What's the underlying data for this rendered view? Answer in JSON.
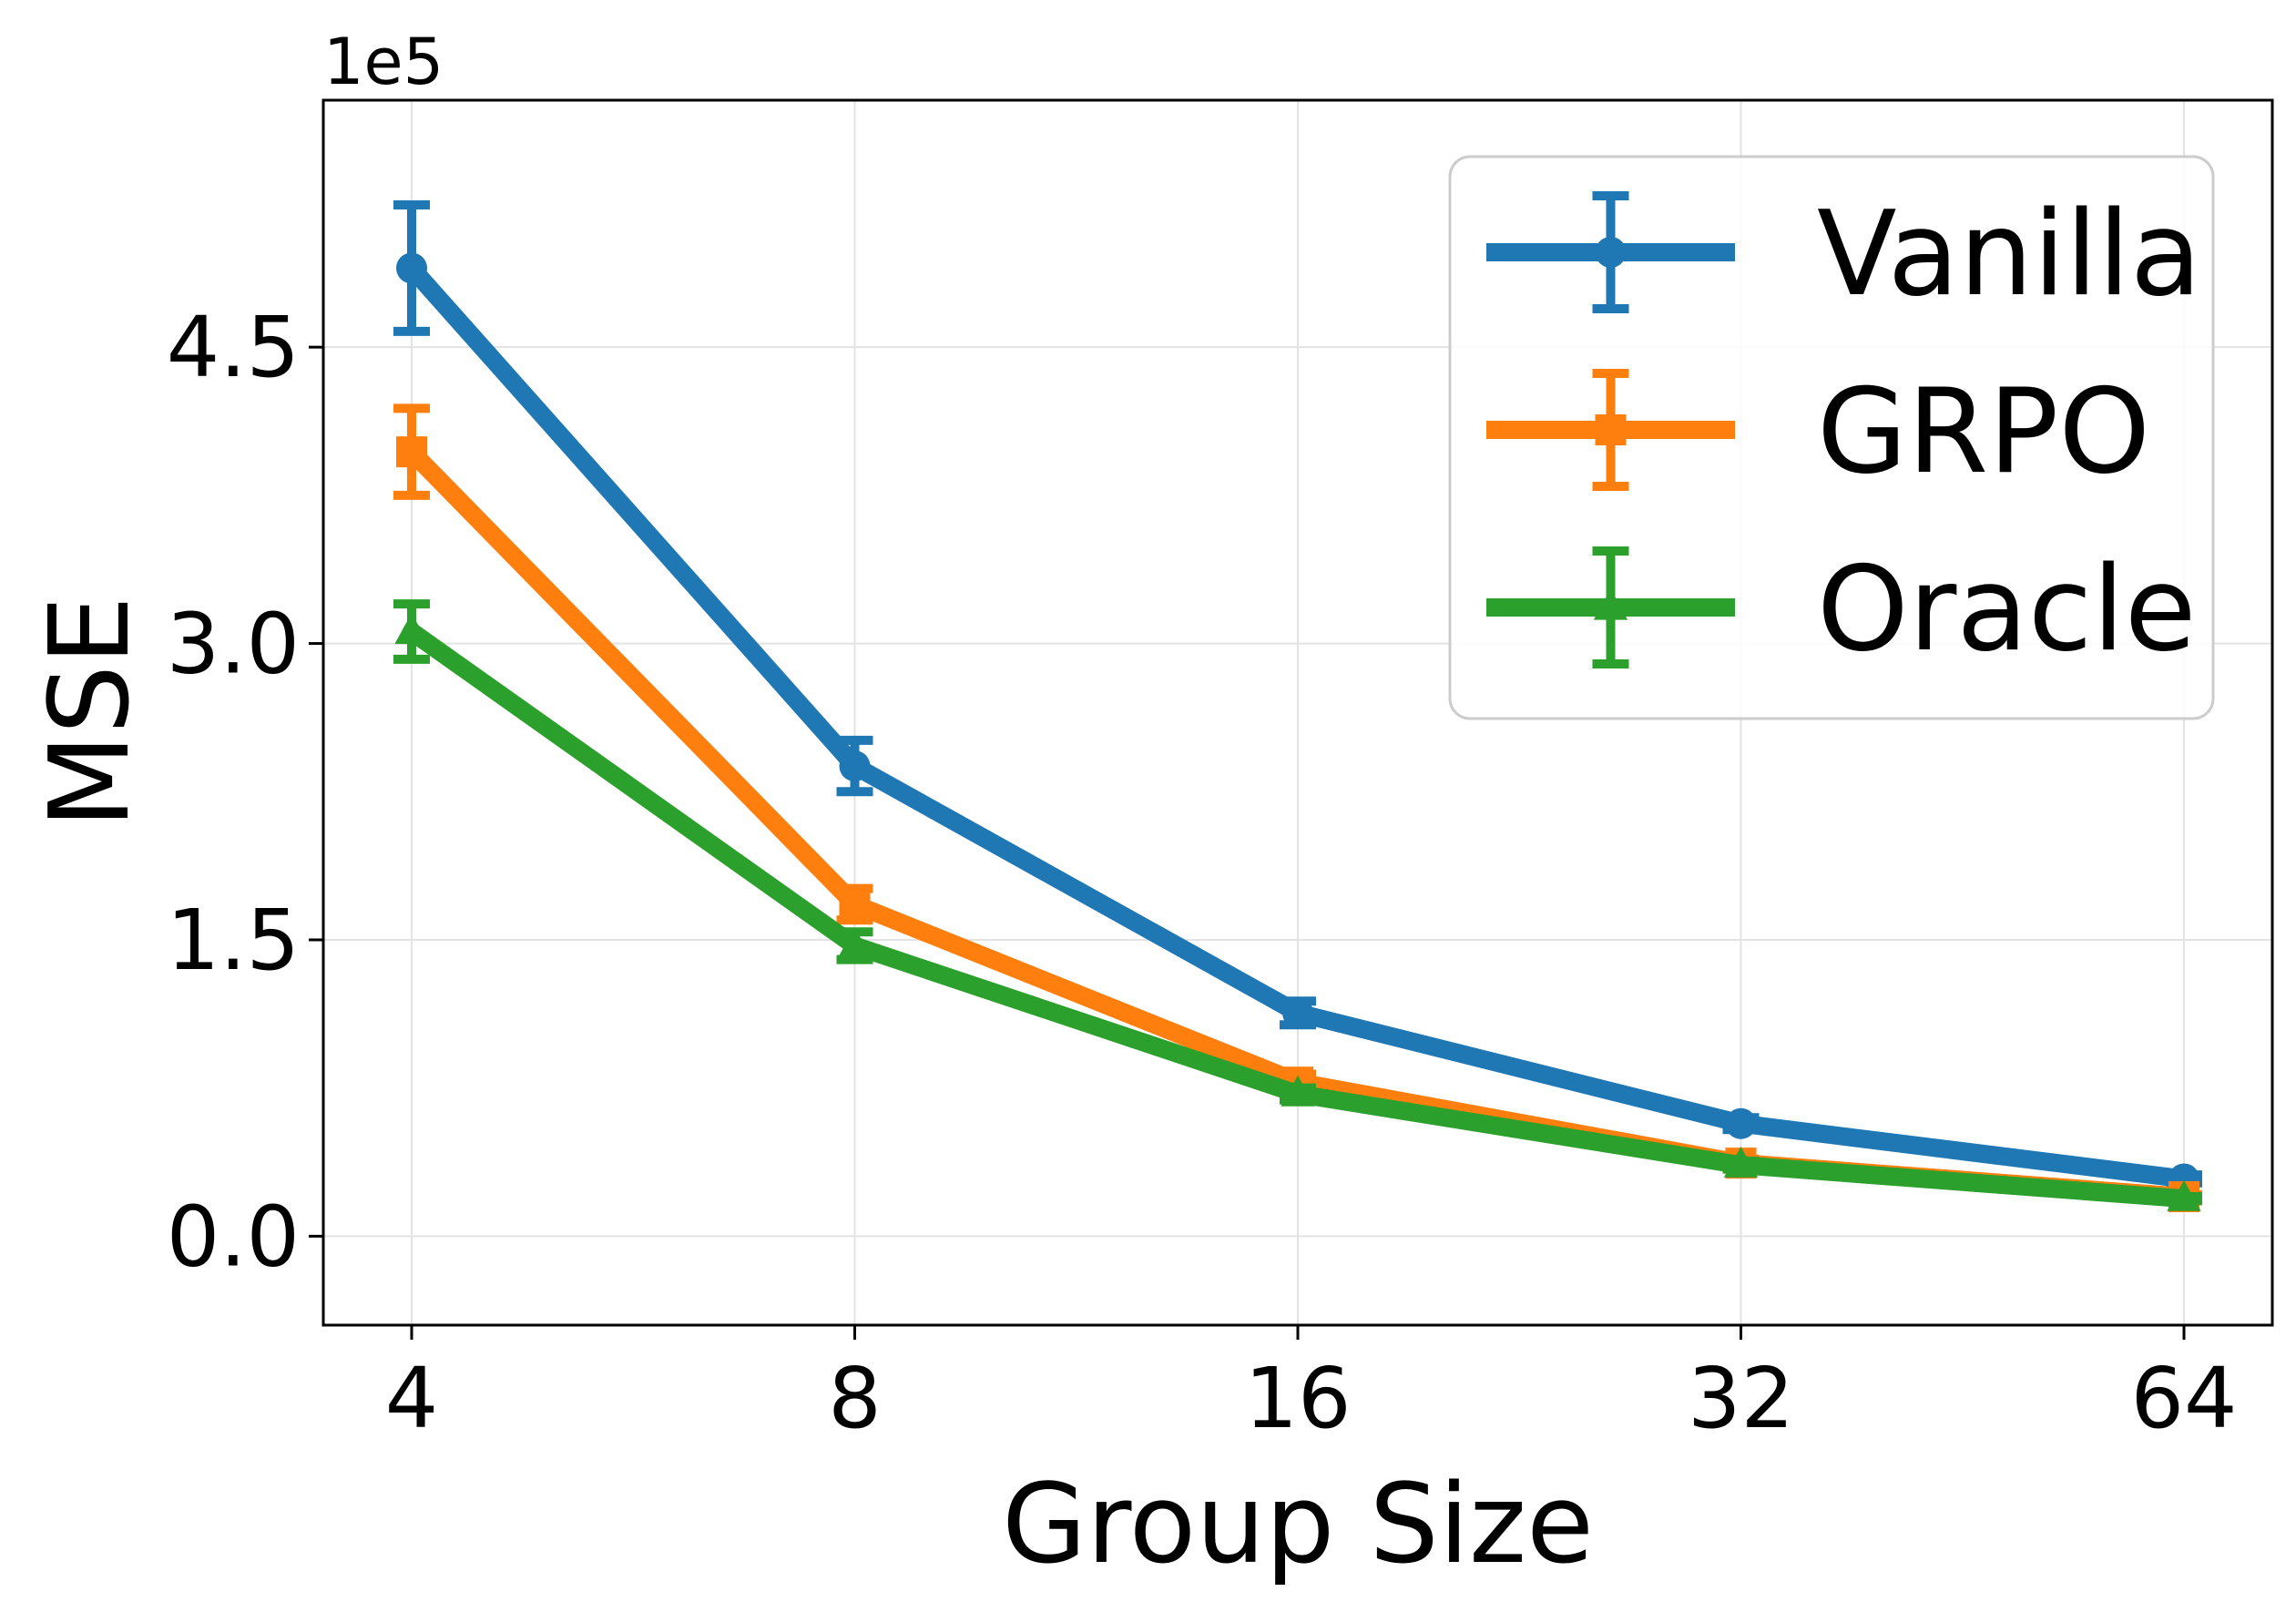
{
  "chart_data": {
    "type": "line",
    "x": [
      "4",
      "8",
      "16",
      "32",
      "64"
    ],
    "xlabel": "Group Size",
    "ylabel": "MSE",
    "y_offset_label": "1e5",
    "y_ticks": [
      "0.0",
      "1.5",
      "3.0",
      "4.5"
    ],
    "y_tick_values": [
      0,
      1.5,
      3.0,
      4.5
    ],
    "ylim": [
      -0.45,
      5.75
    ],
    "grid": true,
    "legend_position": "top-right",
    "series": [
      {
        "name": "Vanilla",
        "color": "#1f77b4",
        "marker": "circle",
        "values": [
          4.9,
          2.38,
          1.13,
          0.57,
          0.29
        ],
        "errors": [
          0.32,
          0.13,
          0.06,
          0.03,
          0.02
        ]
      },
      {
        "name": "GRPO",
        "color": "#ff7f0e",
        "marker": "square",
        "values": [
          3.97,
          1.68,
          0.78,
          0.37,
          0.2
        ],
        "errors": [
          0.22,
          0.08,
          0.04,
          0.02,
          0.01
        ]
      },
      {
        "name": "Oracle",
        "color": "#2ca02c",
        "marker": "triangle",
        "values": [
          3.06,
          1.47,
          0.72,
          0.36,
          0.19
        ],
        "errors": [
          0.14,
          0.07,
          0.03,
          0.02,
          0.01
        ]
      }
    ]
  }
}
